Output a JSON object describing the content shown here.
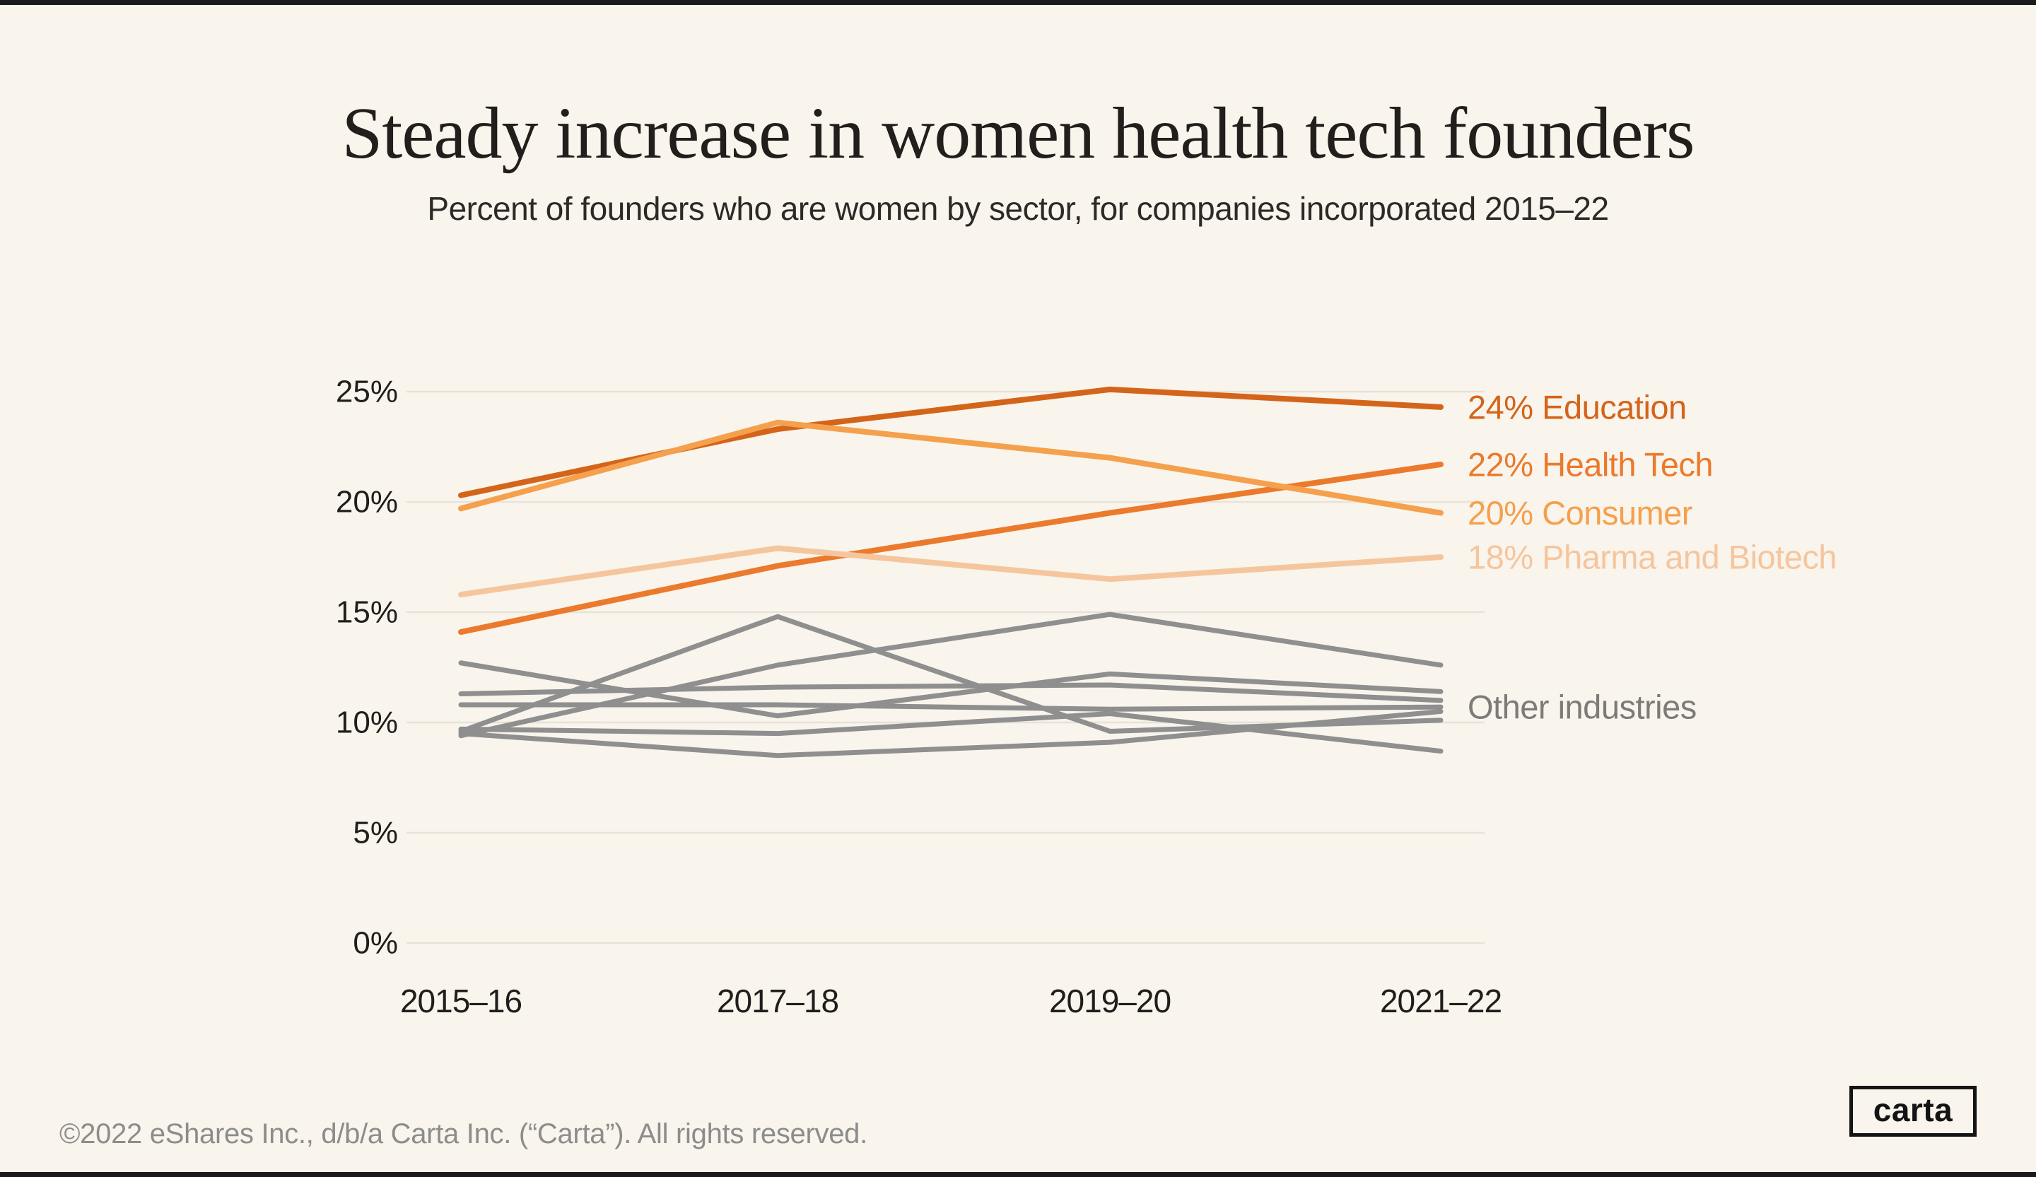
{
  "header": {
    "title": "Steady increase in women health tech founders",
    "subtitle": "Percent of founders who are women by sector, for companies incorporated 2015–22"
  },
  "chart_data": {
    "type": "line",
    "categories": [
      "2015–16",
      "2017–18",
      "2019–20",
      "2021–22"
    ],
    "ylim": [
      0,
      25
    ],
    "yticks": [
      0,
      5,
      10,
      15,
      20,
      25
    ],
    "ytick_format": "percent",
    "grid": true,
    "legend_position": "right of line ends",
    "series": [
      {
        "name": "Education",
        "label": "24% Education",
        "color": "#D4641A",
        "emphasis": true,
        "values": [
          20.3,
          23.3,
          25.1,
          24.3
        ]
      },
      {
        "name": "Health Tech",
        "label": "22% Health Tech",
        "color": "#EB7A2C",
        "emphasis": true,
        "values": [
          14.1,
          17.1,
          19.5,
          21.7
        ]
      },
      {
        "name": "Consumer",
        "label": "20% Consumer",
        "color": "#F5A04C",
        "emphasis": true,
        "values": [
          19.7,
          23.6,
          22.0,
          19.5
        ]
      },
      {
        "name": "Pharma and Biotech",
        "label": "18% Pharma and Biotech",
        "color": "#F5C69E",
        "emphasis": true,
        "values": [
          15.8,
          17.9,
          16.5,
          17.5
        ]
      },
      {
        "name": "Other industry 1",
        "group": "Other industries",
        "color": "#8F8F8F",
        "emphasis": false,
        "values": [
          9.6,
          14.8,
          9.6,
          10.1
        ]
      },
      {
        "name": "Other industry 2",
        "group": "Other industries",
        "color": "#8F8F8F",
        "emphasis": false,
        "values": [
          9.4,
          12.6,
          14.9,
          12.6
        ]
      },
      {
        "name": "Other industry 3",
        "group": "Other industries",
        "color": "#8F8F8F",
        "emphasis": false,
        "values": [
          12.7,
          10.3,
          12.2,
          11.4
        ]
      },
      {
        "name": "Other industry 4",
        "group": "Other industries",
        "color": "#8F8F8F",
        "emphasis": false,
        "values": [
          11.3,
          11.6,
          11.7,
          11.0
        ]
      },
      {
        "name": "Other industry 5",
        "group": "Other industries",
        "color": "#8F8F8F",
        "emphasis": false,
        "values": [
          10.8,
          10.8,
          10.6,
          10.7
        ]
      },
      {
        "name": "Other industry 6",
        "group": "Other industries",
        "color": "#8F8F8F",
        "emphasis": false,
        "values": [
          9.7,
          9.5,
          10.4,
          8.7
        ]
      },
      {
        "name": "Other industry 7",
        "group": "Other industries",
        "color": "#8F8F8F",
        "emphasis": false,
        "values": [
          9.5,
          8.5,
          9.1,
          10.5
        ]
      }
    ],
    "annotations": [
      {
        "text": "Other industries",
        "color": "#7B7B78",
        "y_value": 10.7
      }
    ]
  },
  "footer": {
    "copyright": "©2022 eShares Inc., d/b/a Carta Inc. (“Carta”). All rights reserved.",
    "logo_text": "carta"
  },
  "colors": {
    "background": "#F9F4EC",
    "edge_bar": "#1B1B1B",
    "gridline": "#E8E2D8",
    "axis_text": "#1F1E1C",
    "footer_text": "#8C8C8C"
  }
}
